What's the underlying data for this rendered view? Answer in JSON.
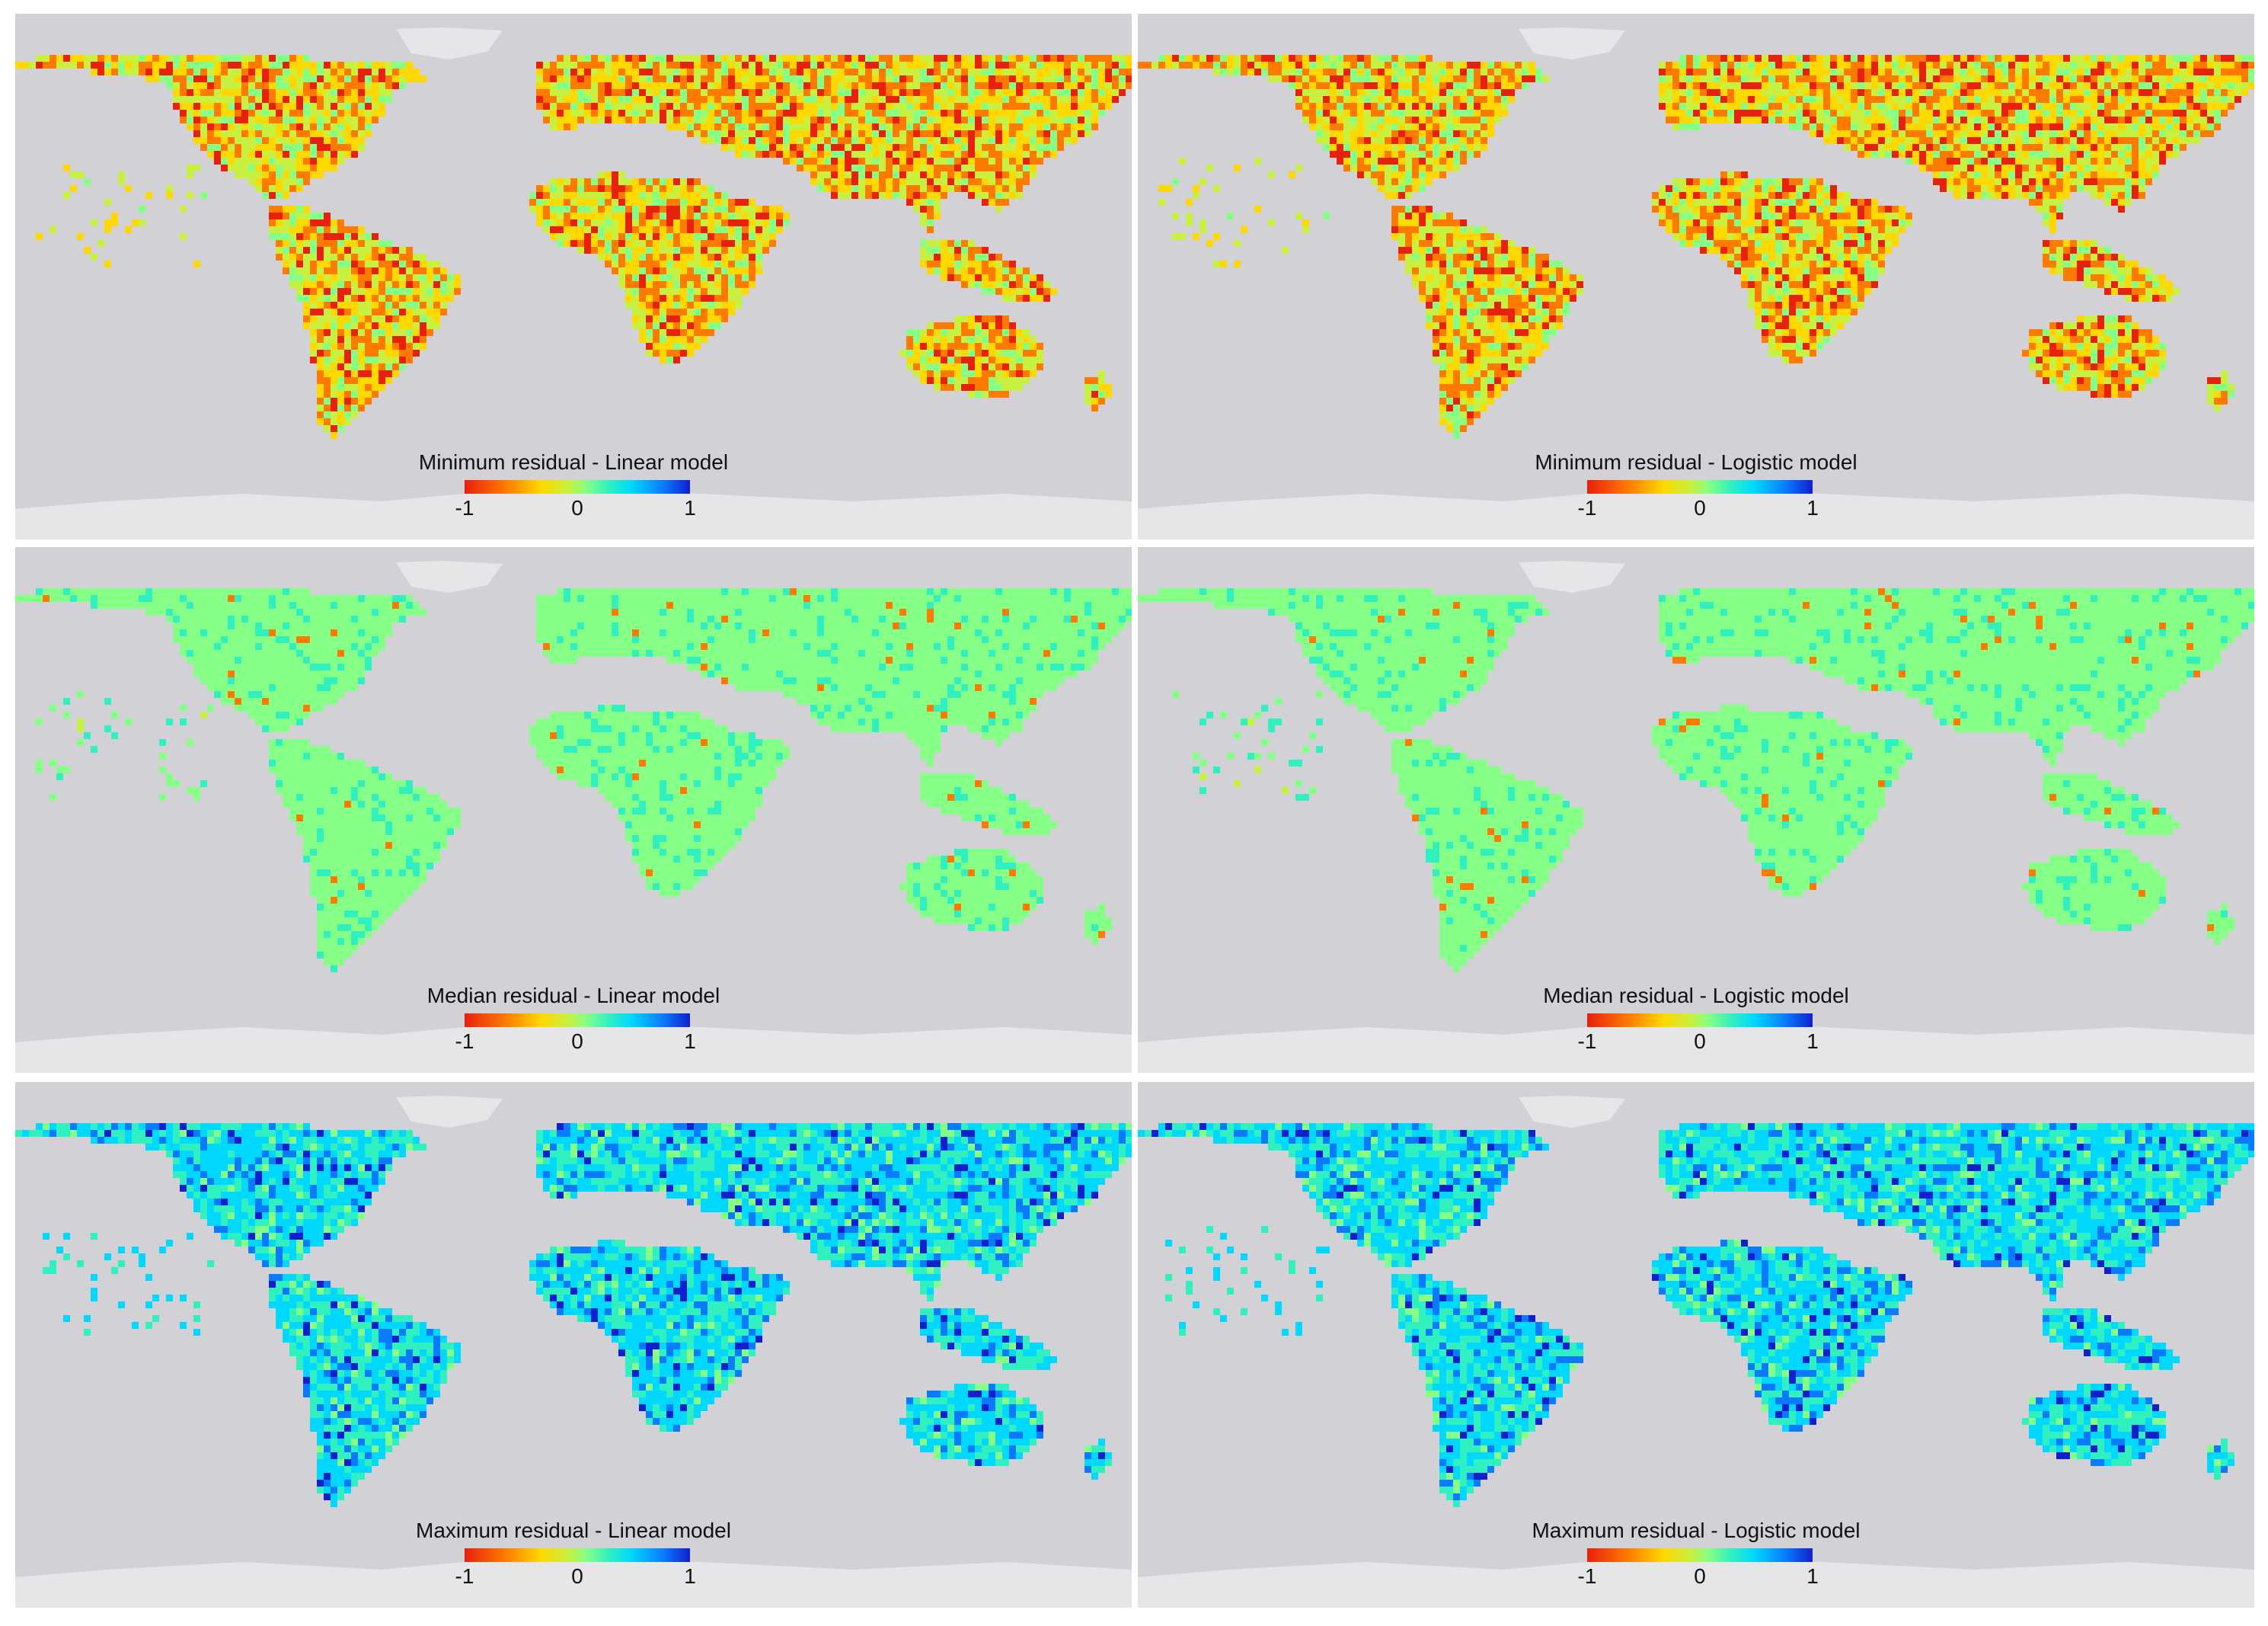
{
  "colors": {
    "ocean": "#d2d1d5",
    "antarctica": "#e6e6e8",
    "colorscale": [
      "#e8200e",
      "#ff7a00",
      "#ffd800",
      "#c8f040",
      "#86ff86",
      "#30f0c0",
      "#00d8ff",
      "#0a7bff",
      "#1020cc"
    ]
  },
  "panels": [
    {
      "title": "Minimum residual - Linear model",
      "stat": "minimum",
      "model": "linear",
      "ticks": [
        "-1",
        "0",
        "1"
      ],
      "pattern": "mostly negative residuals (yellow-orange-red)"
    },
    {
      "title": "Minimum residual - Logistic model",
      "stat": "minimum",
      "model": "logistic",
      "ticks": [
        "-1",
        "0",
        "1"
      ],
      "pattern": "mostly negative residuals (yellow-orange-red)"
    },
    {
      "title": "Median residual - Linear model",
      "stat": "median",
      "model": "linear",
      "ticks": [
        "-1",
        "0",
        "1"
      ],
      "pattern": "near-zero residuals (green)"
    },
    {
      "title": "Median residual - Logistic model",
      "stat": "median",
      "model": "logistic",
      "ticks": [
        "-1",
        "0",
        "1"
      ],
      "pattern": "near-zero residuals (green)"
    },
    {
      "title": "Maximum residual - Linear model",
      "stat": "maximum",
      "model": "linear",
      "ticks": [
        "-1",
        "0",
        "1"
      ],
      "pattern": "mostly positive residuals (cyan-blue)"
    },
    {
      "title": "Maximum residual - Logistic model",
      "stat": "maximum",
      "model": "logistic",
      "ticks": [
        "-1",
        "0",
        "1"
      ],
      "pattern": "mostly positive residuals (cyan-blue)"
    }
  ]
}
